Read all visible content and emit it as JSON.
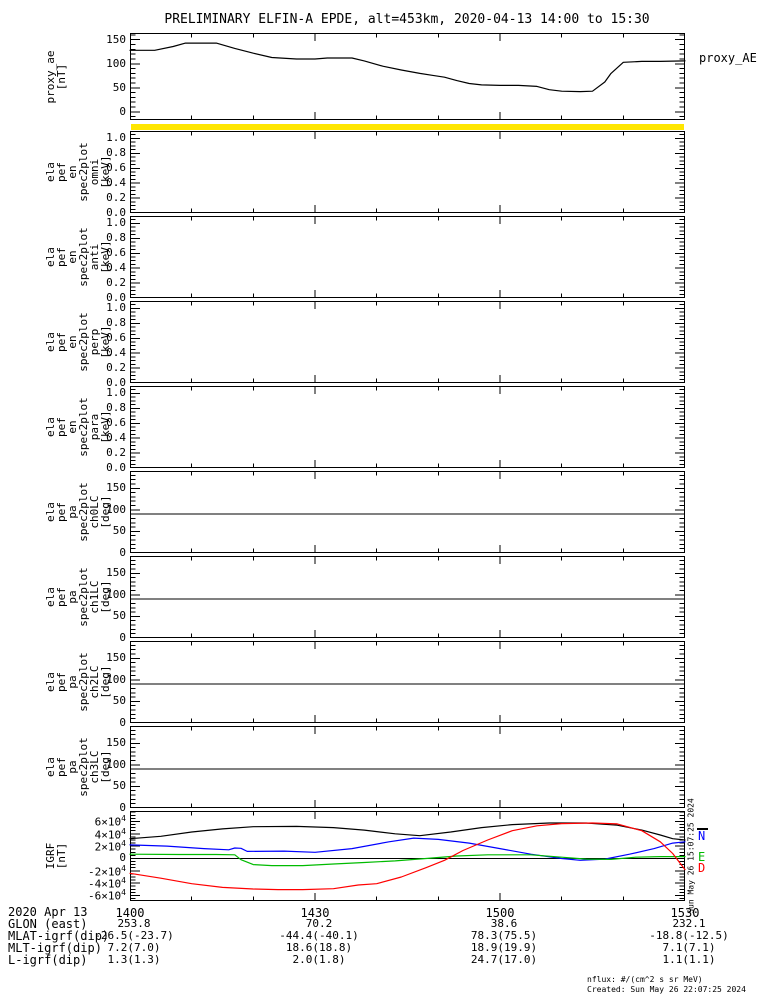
{
  "title": "PRELIMINARY ELFIN-A EPDE, alt=453km, 2020-04-13 14:00 to 15:30",
  "side_timestamp": "Sun May 26 15:07:25 2024",
  "footer": {
    "nflux_units": "nflux: #/(cm^2 s sr MeV)",
    "created": "Created: Sun May 26 22:07:25 2024"
  },
  "colors": {
    "background": "#ffffff",
    "axis": "#000000",
    "yellow_strip": "#ffe600"
  },
  "yellow_strip": {
    "description": "saturated spectrogram strip for ela_pef_en_spec2plot_omni",
    "color": "#ffe600"
  },
  "xaxis": {
    "date_label": "2020 Apr 13",
    "range_minutes": [
      0,
      90
    ],
    "minor_step_minutes": 10,
    "ticks": [
      {
        "minute": 0,
        "label": "1400"
      },
      {
        "minute": 30,
        "label": "1430"
      },
      {
        "minute": 60,
        "label": "1500"
      },
      {
        "minute": 90,
        "label": "1530"
      }
    ]
  },
  "annotation_rows": [
    {
      "label": "GLON (east)",
      "values": [
        "253.8",
        "70.2",
        "38.6",
        "232.1"
      ]
    },
    {
      "label": "MLAT-igrf(dip)",
      "values": [
        "-26.5(-23.7)",
        "-44.4(-40.1)",
        "78.3(75.5)",
        "-18.8(-12.5)"
      ]
    },
    {
      "label": "MLT-igrf(dip)",
      "values": [
        "7.2(7.0)",
        "18.6(18.8)",
        "18.9(19.9)",
        "7.1(7.1)"
      ]
    },
    {
      "label": "L-igrf(dip)",
      "values": [
        "1.3(1.3)",
        "2.0(1.8)",
        "24.7(17.0)",
        "1.1(1.1)"
      ]
    }
  ],
  "chart_data": [
    {
      "type": "line",
      "name": "proxy_ae",
      "ylabel_lines": [
        "proxy_ae",
        "[nT]"
      ],
      "right_label": "proxy_AE",
      "ylim": [
        -17,
        164
      ],
      "yminor": 10,
      "yticks": [
        {
          "v": 0,
          "label": "0"
        },
        {
          "v": 50,
          "label": "50"
        },
        {
          "v": 100,
          "label": "100"
        },
        {
          "v": 150,
          "label": "150"
        }
      ],
      "series": [
        {
          "name": "proxy_AE",
          "color": "#000000",
          "points": [
            [
              0,
              128
            ],
            [
              4,
              128
            ],
            [
              7,
              136
            ],
            [
              9,
              143
            ],
            [
              14,
              143
            ],
            [
              17,
              132
            ],
            [
              20,
              122
            ],
            [
              23,
              113
            ],
            [
              27,
              110
            ],
            [
              30,
              110
            ],
            [
              32,
              112
            ],
            [
              36,
              112
            ],
            [
              38,
              106
            ],
            [
              41,
              95
            ],
            [
              44,
              87
            ],
            [
              47,
              80
            ],
            [
              49,
              76
            ],
            [
              51,
              72
            ],
            [
              53,
              65
            ],
            [
              55,
              59
            ],
            [
              57,
              56
            ],
            [
              60,
              55
            ],
            [
              63,
              55
            ],
            [
              66,
              53
            ],
            [
              68,
              46
            ],
            [
              70,
              43
            ],
            [
              73,
              42
            ],
            [
              75,
              43
            ],
            [
              77,
              62
            ],
            [
              78,
              80
            ],
            [
              80,
              103
            ],
            [
              83,
              105
            ],
            [
              86,
              105
            ],
            [
              90,
              106
            ]
          ]
        }
      ]
    },
    {
      "type": "spectrogram",
      "name": "ela_pef_en_spec2plot_omni",
      "note": "no data plotted",
      "ylabel_lines": [
        "ela",
        "pef",
        "en",
        "spec2plot",
        "omni",
        "[keV]"
      ],
      "ylim": [
        0,
        1.1
      ],
      "yminor": 0.05,
      "yticks": [
        {
          "v": 0,
          "label": "0.0"
        },
        {
          "v": 0.2,
          "label": "0.2"
        },
        {
          "v": 0.4,
          "label": "0.4"
        },
        {
          "v": 0.6,
          "label": "0.6"
        },
        {
          "v": 0.8,
          "label": "0.8"
        },
        {
          "v": 1,
          "label": "1.0"
        }
      ],
      "series": []
    },
    {
      "type": "spectrogram",
      "name": "ela_pef_en_spec2plot_anti",
      "note": "no data plotted",
      "ylabel_lines": [
        "ela",
        "pef",
        "en",
        "spec2plot",
        "anti",
        "[keV]"
      ],
      "ylim": [
        0,
        1.1
      ],
      "yminor": 0.05,
      "yticks": [
        {
          "v": 0,
          "label": "0.0"
        },
        {
          "v": 0.2,
          "label": "0.2"
        },
        {
          "v": 0.4,
          "label": "0.4"
        },
        {
          "v": 0.6,
          "label": "0.6"
        },
        {
          "v": 0.8,
          "label": "0.8"
        },
        {
          "v": 1,
          "label": "1.0"
        }
      ],
      "series": []
    },
    {
      "type": "spectrogram",
      "name": "ela_pef_en_spec2plot_perp",
      "note": "no data plotted",
      "ylabel_lines": [
        "ela",
        "pef",
        "en",
        "spec2plot",
        "perp",
        "[keV]"
      ],
      "ylim": [
        0,
        1.1
      ],
      "yminor": 0.05,
      "yticks": [
        {
          "v": 0,
          "label": "0.0"
        },
        {
          "v": 0.2,
          "label": "0.2"
        },
        {
          "v": 0.4,
          "label": "0.4"
        },
        {
          "v": 0.6,
          "label": "0.6"
        },
        {
          "v": 0.8,
          "label": "0.8"
        },
        {
          "v": 1,
          "label": "1.0"
        }
      ],
      "series": []
    },
    {
      "type": "spectrogram",
      "name": "ela_pef_en_spec2plot_para",
      "note": "no data plotted",
      "ylabel_lines": [
        "ela",
        "pef",
        "en",
        "spec2plot",
        "para",
        "[keV]"
      ],
      "ylim": [
        0,
        1.1
      ],
      "yminor": 0.05,
      "yticks": [
        {
          "v": 0,
          "label": "0.0"
        },
        {
          "v": 0.2,
          "label": "0.2"
        },
        {
          "v": 0.4,
          "label": "0.4"
        },
        {
          "v": 0.6,
          "label": "0.6"
        },
        {
          "v": 0.8,
          "label": "0.8"
        },
        {
          "v": 1,
          "label": "1.0"
        }
      ],
      "series": []
    },
    {
      "type": "spectrogram",
      "name": "ela_pef_pa_spec2plot_ch0LC",
      "note": "no data plotted",
      "ylabel_lines": [
        "ela",
        "pef",
        "pa",
        "spec2plot",
        "ch0LC",
        "[deg]"
      ],
      "ylim": [
        0,
        190
      ],
      "yminor": 10,
      "hline": 90,
      "yticks": [
        {
          "v": 0,
          "label": "0"
        },
        {
          "v": 50,
          "label": "50"
        },
        {
          "v": 100,
          "label": "100"
        },
        {
          "v": 150,
          "label": "150"
        }
      ],
      "series": []
    },
    {
      "type": "spectrogram",
      "name": "ela_pef_pa_spec2plot_ch1LC",
      "note": "no data plotted",
      "ylabel_lines": [
        "ela",
        "pef",
        "pa",
        "spec2plot",
        "ch1LC",
        "[deg]"
      ],
      "ylim": [
        0,
        190
      ],
      "yminor": 10,
      "hline": 90,
      "yticks": [
        {
          "v": 0,
          "label": "0"
        },
        {
          "v": 50,
          "label": "50"
        },
        {
          "v": 100,
          "label": "100"
        },
        {
          "v": 150,
          "label": "150"
        }
      ],
      "series": []
    },
    {
      "type": "spectrogram",
      "name": "ela_pef_pa_spec2plot_ch2LC",
      "note": "no data plotted",
      "ylabel_lines": [
        "ela",
        "pef",
        "pa",
        "spec2plot",
        "ch2LC",
        "[deg]"
      ],
      "ylim": [
        0,
        190
      ],
      "yminor": 10,
      "hline": 90,
      "yticks": [
        {
          "v": 0,
          "label": "0"
        },
        {
          "v": 50,
          "label": "50"
        },
        {
          "v": 100,
          "label": "100"
        },
        {
          "v": 150,
          "label": "150"
        }
      ],
      "series": []
    },
    {
      "type": "spectrogram",
      "name": "ela_pef_pa_spec2plot_ch3LC",
      "note": "no data plotted",
      "ylabel_lines": [
        "ela",
        "pef",
        "pa",
        "spec2plot",
        "ch3LC",
        "[deg]"
      ],
      "ylim": [
        0,
        190
      ],
      "yminor": 10,
      "hline": 90,
      "yticks": [
        {
          "v": 0,
          "label": "0"
        },
        {
          "v": 50,
          "label": "50"
        },
        {
          "v": 100,
          "label": "100"
        },
        {
          "v": 150,
          "label": "150"
        }
      ],
      "series": []
    },
    {
      "type": "line",
      "name": "igrf",
      "ylabel_lines": [
        "IGRF",
        "[nT]"
      ],
      "ylim": [
        -69000,
        77000
      ],
      "yminor": 5000,
      "hline": 0,
      "yticks": [
        {
          "v": 60000,
          "label": "6×10^4"
        },
        {
          "v": 40000,
          "label": "4×10^4"
        },
        {
          "v": 20000,
          "label": "2×10^4"
        },
        {
          "v": 0,
          "label": "0"
        },
        {
          "v": -20000,
          "label": "-2×10^4"
        },
        {
          "v": -40000,
          "label": "-4×10^4"
        },
        {
          "v": -60000,
          "label": "-6×10^4"
        }
      ],
      "legend": [
        {
          "label": "N",
          "color": "#0000ff"
        },
        {
          "label": "E",
          "color": "#00bb00"
        },
        {
          "label": "D",
          "color": "#ff0000"
        }
      ],
      "series": [
        {
          "name": "B",
          "color": "#000000",
          "points": [
            [
              0,
              32000
            ],
            [
              5,
              36000
            ],
            [
              10,
              43000
            ],
            [
              15,
              48000
            ],
            [
              20,
              51500
            ],
            [
              27,
              52000
            ],
            [
              33,
              50000
            ],
            [
              38,
              46000
            ],
            [
              43,
              40000
            ],
            [
              47,
              37000
            ],
            [
              52,
              43000
            ],
            [
              57,
              50000
            ],
            [
              62,
              55000
            ],
            [
              68,
              57500
            ],
            [
              74,
              57500
            ],
            [
              79,
              54000
            ],
            [
              83,
              46000
            ],
            [
              86,
              38000
            ],
            [
              88,
              32000
            ],
            [
              90,
              30000
            ]
          ]
        },
        {
          "name": "N",
          "color": "#0000ff",
          "points": [
            [
              0,
              22000
            ],
            [
              6,
              20000
            ],
            [
              12,
              16000
            ],
            [
              16,
              14000
            ],
            [
              17,
              17000
            ],
            [
              18,
              16500
            ],
            [
              19,
              11500
            ],
            [
              25,
              12000
            ],
            [
              30,
              10000
            ],
            [
              36,
              16000
            ],
            [
              42,
              27000
            ],
            [
              46,
              33000
            ],
            [
              50,
              31000
            ],
            [
              55,
              25000
            ],
            [
              60,
              16000
            ],
            [
              65,
              7000
            ],
            [
              70,
              0
            ],
            [
              73,
              -3000
            ],
            [
              77,
              -1000
            ],
            [
              81,
              7000
            ],
            [
              85,
              16000
            ],
            [
              88,
              25000
            ],
            [
              90,
              27000
            ]
          ]
        },
        {
          "name": "E",
          "color": "#00bb00",
          "points": [
            [
              0,
              7000
            ],
            [
              8,
              6500
            ],
            [
              14,
              6500
            ],
            [
              17,
              6000
            ],
            [
              18,
              -2000
            ],
            [
              20,
              -10000
            ],
            [
              23,
              -11500
            ],
            [
              28,
              -11500
            ],
            [
              33,
              -9000
            ],
            [
              38,
              -6500
            ],
            [
              43,
              -4000
            ],
            [
              48,
              0
            ],
            [
              53,
              4000
            ],
            [
              58,
              6000
            ],
            [
              65,
              6000
            ],
            [
              70,
              2000
            ],
            [
              74,
              -1000
            ],
            [
              78,
              -1500
            ],
            [
              82,
              2000
            ],
            [
              86,
              3000
            ],
            [
              90,
              3000
            ]
          ]
        },
        {
          "name": "D",
          "color": "#ff0000",
          "points": [
            [
              0,
              -24000
            ],
            [
              5,
              -32000
            ],
            [
              10,
              -41000
            ],
            [
              15,
              -47000
            ],
            [
              20,
              -49500
            ],
            [
              24,
              -50500
            ],
            [
              28,
              -50500
            ],
            [
              33,
              -49000
            ],
            [
              37,
              -43000
            ],
            [
              40,
              -41000
            ],
            [
              44,
              -30000
            ],
            [
              48,
              -15000
            ],
            [
              51,
              -3000
            ],
            [
              54,
              13000
            ],
            [
              58,
              30000
            ],
            [
              62,
              45000
            ],
            [
              66,
              53000
            ],
            [
              70,
              56500
            ],
            [
              75,
              57500
            ],
            [
              79,
              56000
            ],
            [
              83,
              45000
            ],
            [
              86,
              27000
            ],
            [
              88,
              8000
            ],
            [
              90,
              -18000
            ]
          ]
        }
      ]
    }
  ]
}
